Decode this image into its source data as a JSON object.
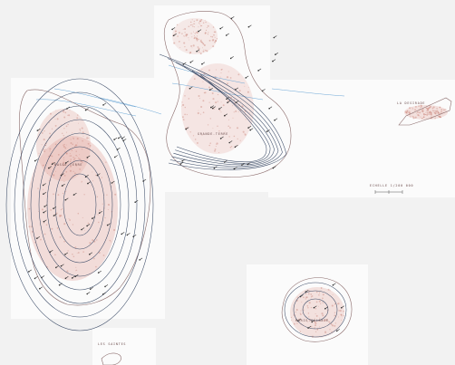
{
  "map": {
    "labels": {
      "basse_terre": "BASSE-TERRE",
      "grande_terre": "GRANDE-TERRE",
      "la_desirade": "LA DESIRADE",
      "marie_galante": "MARIE-GALANTE",
      "les_saintes": "LES SAINTES",
      "scale_note": "ECHELLE 1/200 000"
    },
    "colors": {
      "background": "#f2f2f2",
      "sheet": "#fbfbfb",
      "relief": "#e2a49a",
      "relief_dark": "#c9867a",
      "isohyet": "#3a4a66",
      "river": "#6aa6d6",
      "coast": "#8a6a6a"
    }
  }
}
